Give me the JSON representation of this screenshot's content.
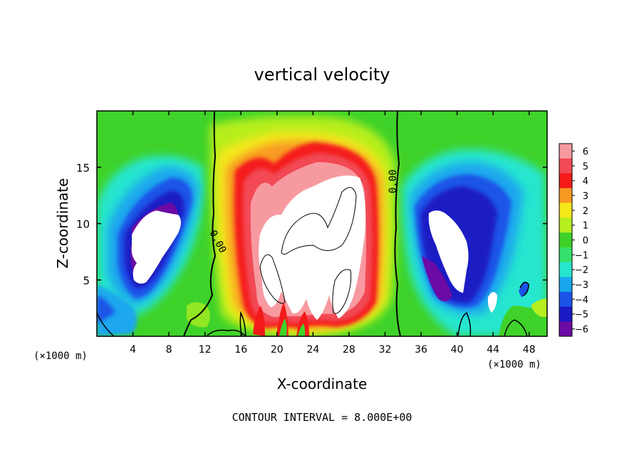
{
  "chart_data": {
    "type": "heatmap",
    "title": "vertical velocity",
    "xlabel": "X-coordinate",
    "ylabel": "Z-coordinate",
    "x_unit_left": "(×1000 m)",
    "x_unit_right": "(×1000 m)",
    "xlim": [
      0,
      50
    ],
    "ylim": [
      0,
      20
    ],
    "x_ticks": [
      "4",
      "8",
      "12",
      "16",
      "20",
      "24",
      "28",
      "32",
      "36",
      "40",
      "44",
      "48"
    ],
    "x_tick_values": [
      4,
      8,
      12,
      16,
      20,
      24,
      28,
      32,
      36,
      40,
      44,
      48
    ],
    "y_ticks": [
      "5",
      "10",
      "15"
    ],
    "y_tick_values": [
      5,
      10,
      15
    ],
    "colorbar": {
      "levels": [
        6,
        5,
        4,
        3,
        2,
        1,
        0,
        -1,
        -2,
        -3,
        -4,
        -5,
        -6
      ],
      "labels": [
        "6",
        "5",
        "4",
        "3",
        "2",
        "1",
        "0",
        "−1",
        "−2",
        "−3",
        "−4",
        "−5",
        "−6"
      ],
      "colors": [
        "#f79aa0",
        "#f24a55",
        "#f41a1a",
        "#f89a22",
        "#f4e81a",
        "#b6ee1f",
        "#3fd22a",
        "#34e06a",
        "#27e6cf",
        "#1aa7ee",
        "#1a55e8",
        "#1a1ac4",
        "#6b0aa5"
      ]
    },
    "contour_labels": [
      "0.00",
      "0.00"
    ],
    "contour_interval_note": "CONTOUR INTERVAL = 8.000E+00"
  }
}
